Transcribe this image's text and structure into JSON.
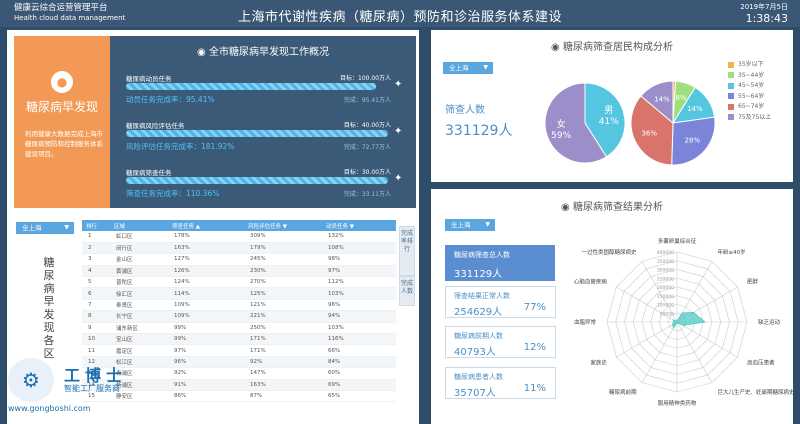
{
  "header": {
    "brand_cn": "健康云综合运营管理平台",
    "brand_en": "Health cloud data management",
    "title": "上海市代谢性疾病（糖尿病）预防和诊治服务体系建设",
    "date": "2019年7月5日",
    "time": "1:38:43"
  },
  "intro": {
    "icon": "blood-drop-icon",
    "title": "糖尿病早发现",
    "desc": "利用健康大数据完成上海市糖尿病预防和控制服务体系建设项目。"
  },
  "overview": {
    "title": "全市糖尿病早发现工作概况",
    "tasks": [
      {
        "name": "糖尿病动员任务",
        "target": "目标：100.00万人",
        "rate_label": "动员任务完成率：",
        "rate": "95.41%",
        "done": "完成：95.41万人",
        "progress": 0.9541
      },
      {
        "name": "糖尿病风险评估任务",
        "target": "目标：40.00万人",
        "rate_label": "风险评估任务完成率：",
        "rate": "181.92%",
        "done": "完成：72.77万人",
        "progress": 1.0
      },
      {
        "name": "糖尿病筛查任务",
        "target": "目标：30.00万人",
        "rate_label": "筛查任务完成率：",
        "rate": "110.36%",
        "done": "完成：33.11万人",
        "progress": 1.0
      }
    ]
  },
  "region_select": {
    "value": "全上海"
  },
  "district_section": {
    "title": "糖尿病早发现各区"
  },
  "table": {
    "columns": [
      "排行",
      "区域",
      "筛查任务 ▲",
      "风险评估任务 ▼",
      "动员任务 ▼"
    ],
    "rows": [
      [
        "1",
        "虹口区",
        "178%",
        "309%",
        "132%"
      ],
      [
        "2",
        "闵行区",
        "163%",
        "179%",
        "108%"
      ],
      [
        "3",
        "金山区",
        "127%",
        "245%",
        "98%"
      ],
      [
        "4",
        "黄浦区",
        "126%",
        "230%",
        "97%"
      ],
      [
        "5",
        "普陀区",
        "124%",
        "270%",
        "112%"
      ],
      [
        "6",
        "徐汇区",
        "114%",
        "125%",
        "103%"
      ],
      [
        "7",
        "奉贤区",
        "109%",
        "121%",
        "96%"
      ],
      [
        "8",
        "长宁区",
        "109%",
        "221%",
        "94%"
      ],
      [
        "9",
        "浦东新区",
        "99%",
        "250%",
        "103%"
      ],
      [
        "10",
        "宝山区",
        "99%",
        "171%",
        "116%"
      ],
      [
        "11",
        "嘉定区",
        "97%",
        "171%",
        "66%"
      ],
      [
        "12",
        "松江区",
        "96%",
        "92%",
        "84%"
      ],
      [
        "13",
        "青浦区",
        "92%",
        "147%",
        "60%"
      ],
      [
        "14",
        "杨浦区",
        "91%",
        "163%",
        "69%"
      ],
      [
        "15",
        "静安区",
        "86%",
        "87%",
        "65%"
      ]
    ],
    "side_tabs": [
      "完成率排行",
      "完成人数"
    ]
  },
  "composition": {
    "title": "糖尿病筛查居民构成分析",
    "select": "全上海",
    "total_label": "筛查人数",
    "total_value": "331129人",
    "gender_chart": {
      "type": "pie",
      "slices": [
        {
          "label": "男",
          "pct": "41%",
          "value": 41,
          "color": "#55c6e0"
        },
        {
          "label": "女",
          "pct": "59%",
          "value": 59,
          "color": "#9b8ec9"
        }
      ]
    },
    "age_chart": {
      "type": "pie",
      "slices": [
        {
          "label": "35岁以下",
          "pct": "",
          "value": 1,
          "color": "#f6b04e"
        },
        {
          "label": "35~44岁",
          "pct": "8%",
          "value": 8,
          "color": "#9ee07f"
        },
        {
          "label": "45~54岁",
          "pct": "14%",
          "value": 14,
          "color": "#55c6e0"
        },
        {
          "label": "55~64岁",
          "pct": "28%",
          "value": 28,
          "color": "#7b84d8"
        },
        {
          "label": "65~74岁",
          "pct": "36%",
          "value": 36,
          "color": "#d9746a"
        },
        {
          "label": "75及75以上",
          "pct": "14%",
          "value": 14,
          "color": "#9b8ec9"
        }
      ]
    }
  },
  "results": {
    "title": "糖尿病筛查结果分析",
    "select": "全上海",
    "stats": [
      {
        "label": "糖尿病筛查总人数",
        "value": "331129人",
        "pct": ""
      },
      {
        "label": "筛查结果正常人数",
        "value": "254629人",
        "pct": "77%"
      },
      {
        "label": "糖尿病前期人数",
        "value": "40793人",
        "pct": "12%"
      },
      {
        "label": "糖尿病患者人数",
        "value": "35707人",
        "pct": "11%"
      }
    ],
    "radar": {
      "type": "radar",
      "axes": [
        "多囊卵巢综合征",
        "年龄≥40岁",
        "肥胖",
        "缺乏运动",
        "高血压患者",
        "巨大儿生产史、妊娠期糖尿病史",
        "服用精神类药物",
        "糖尿病前期",
        "家族史",
        "血脂异常",
        "心脑血管疾病",
        "一过性类固醇糖尿病史"
      ],
      "ticks": [
        "400000",
        "350000",
        "300000",
        "250000",
        "200000",
        "150000",
        "100000",
        "50000"
      ],
      "max": 400000,
      "values": [
        5000,
        60000,
        110000,
        160000,
        40000,
        5000,
        5000,
        40000,
        30000,
        20000,
        25000,
        5000
      ],
      "color": "#4ec9c3"
    }
  },
  "watermark": {
    "logo_icon": "robot-logo-icon",
    "name": "工博士",
    "sub": "智能工厂服务商",
    "url": "www.gongboshi.com"
  }
}
